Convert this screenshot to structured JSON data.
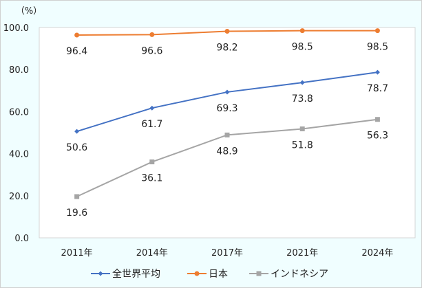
{
  "chart_data": {
    "type": "line",
    "unit_label": "（%）",
    "categories": [
      "2011年",
      "2014年",
      "2017年",
      "2021年",
      "2024年"
    ],
    "ylim": [
      0,
      100
    ],
    "yticks": [
      "0.0",
      "20.0",
      "40.0",
      "60.0",
      "80.0",
      "100.0"
    ],
    "grid": false,
    "legend_position": "bottom",
    "series": [
      {
        "name": "全世界平均",
        "color": "#4472C4",
        "marker": "diamond",
        "values": [
          50.6,
          61.7,
          69.3,
          73.8,
          78.7
        ]
      },
      {
        "name": "日本",
        "color": "#ED7D31",
        "marker": "circle",
        "values": [
          96.4,
          96.6,
          98.2,
          98.5,
          98.5
        ]
      },
      {
        "name": "インドネシア",
        "color": "#A5A5A5",
        "marker": "square",
        "values": [
          19.6,
          36.1,
          48.9,
          51.8,
          56.3
        ]
      }
    ]
  }
}
